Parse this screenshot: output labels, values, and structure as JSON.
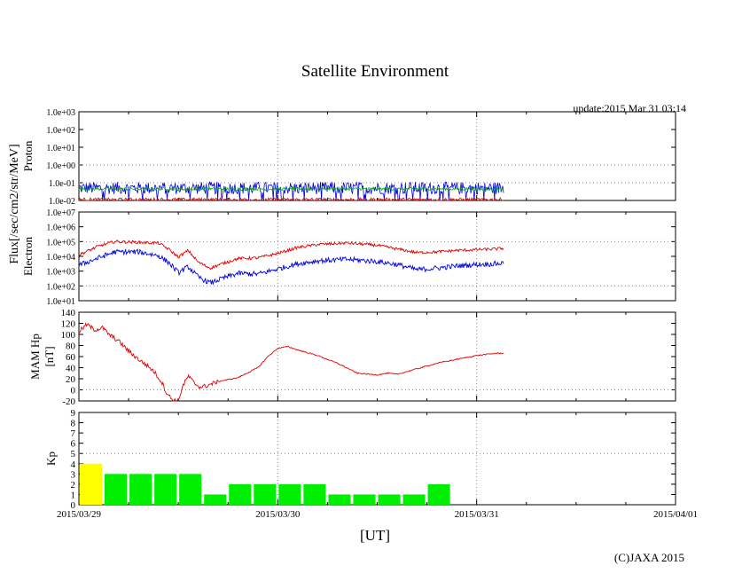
{
  "header": {
    "title": "Satellite Environment",
    "update": "update:2015 Mar 31 03:14"
  },
  "footer": {
    "xlabel": "[UT]",
    "credit": "(C)JAXA 2015"
  },
  "colors": {
    "red": "#e00000",
    "blue": "#0000e0",
    "green": "#00b000",
    "kp_low": "#00ee00",
    "kp_high": "#ffff00",
    "grid": "#888888"
  },
  "chart_data": [
    {
      "name": "proton",
      "type": "line",
      "scale": "log",
      "ylabel": "Proton",
      "shared_ylabel": "Flux[/sec/cm2/str/MeV]",
      "ylim_exp": [
        -2,
        3
      ],
      "ytick_labels": [
        "1.0e-02",
        "1.0e-01",
        "1.0e+00",
        "1.0e+01",
        "1.0e+02",
        "1.0e+03"
      ],
      "xlim_days": [
        0,
        3
      ],
      "data_end_day": 2.135,
      "series": [
        {
          "name": "blue",
          "color_key": "blue",
          "approx_log10_level": -1.3,
          "noise": 0.35
        },
        {
          "name": "green",
          "color_key": "green",
          "approx_log10_level": -1.35,
          "noise": 0.08
        },
        {
          "name": "red",
          "color_key": "red",
          "approx_log10_level": -1.95,
          "noise": 0.1
        }
      ]
    },
    {
      "name": "electron",
      "type": "line",
      "scale": "log",
      "ylabel": "Electron",
      "ylim_exp": [
        1,
        7
      ],
      "ytick_labels": [
        "1.0e+01",
        "1.0e+02",
        "1.0e+03",
        "1.0e+04",
        "1.0e+05",
        "1.0e+06",
        "1.0e+07"
      ],
      "xlim_days": [
        0,
        3
      ],
      "series": [
        {
          "name": "red",
          "color_key": "red",
          "x": [
            0,
            0.1,
            0.18,
            0.3,
            0.4,
            0.45,
            0.5,
            0.55,
            0.6,
            0.66,
            0.72,
            0.8,
            0.9,
            1.0,
            1.1,
            1.2,
            1.35,
            1.5,
            1.6,
            1.7,
            1.8,
            1.9,
            2.0,
            2.1,
            2.135
          ],
          "y_log10": [
            4.1,
            4.7,
            5.0,
            4.95,
            4.9,
            4.5,
            3.95,
            4.4,
            3.6,
            3.2,
            3.5,
            3.85,
            3.9,
            4.2,
            4.6,
            4.8,
            4.9,
            4.75,
            4.5,
            4.25,
            4.3,
            4.4,
            4.45,
            4.5,
            4.55
          ]
        },
        {
          "name": "blue",
          "color_key": "blue",
          "x": [
            0,
            0.1,
            0.18,
            0.3,
            0.4,
            0.45,
            0.5,
            0.55,
            0.6,
            0.66,
            0.72,
            0.8,
            0.9,
            1.0,
            1.1,
            1.2,
            1.35,
            1.5,
            1.6,
            1.7,
            1.8,
            1.9,
            2.0,
            2.1,
            2.135
          ],
          "y_log10": [
            3.4,
            3.9,
            4.3,
            4.3,
            4.05,
            3.6,
            2.9,
            3.3,
            2.6,
            2.2,
            2.5,
            2.85,
            2.8,
            3.15,
            3.5,
            3.7,
            3.8,
            3.65,
            3.45,
            3.1,
            3.2,
            3.35,
            3.45,
            3.5,
            3.55
          ]
        }
      ]
    },
    {
      "name": "mam_hp",
      "type": "line",
      "ylabel": "MAM Hp",
      "ylabel2": "[nT]",
      "ylim": [
        -20,
        140
      ],
      "ytick_labels": [
        "-20",
        "0",
        "20",
        "40",
        "60",
        "80",
        "100",
        "120",
        "140"
      ],
      "xlim_days": [
        0,
        3
      ],
      "series": [
        {
          "name": "hp",
          "color_key": "red",
          "x": [
            0,
            0.04,
            0.08,
            0.12,
            0.15,
            0.2,
            0.25,
            0.3,
            0.35,
            0.38,
            0.42,
            0.44,
            0.47,
            0.5,
            0.52,
            0.55,
            0.58,
            0.61,
            0.64,
            0.7,
            0.8,
            0.9,
            0.95,
            1.0,
            1.05,
            1.1,
            1.2,
            1.3,
            1.4,
            1.5,
            1.55,
            1.6,
            1.65,
            1.7,
            1.8,
            1.9,
            2.0,
            2.1,
            2.135
          ],
          "y": [
            105,
            118,
            108,
            112,
            100,
            88,
            70,
            55,
            42,
            32,
            12,
            -5,
            -18,
            -20,
            5,
            25,
            12,
            5,
            7,
            15,
            22,
            40,
            60,
            75,
            78,
            72,
            62,
            48,
            30,
            27,
            30,
            28,
            33,
            38,
            48,
            55,
            62,
            66,
            66
          ]
        }
      ]
    },
    {
      "name": "kp",
      "type": "bar",
      "ylabel": "Kp",
      "ylim": [
        0,
        9
      ],
      "ytick_labels": [
        "0",
        "1",
        "2",
        "3",
        "4",
        "5",
        "6",
        "7",
        "8",
        "9"
      ],
      "xlim_days": [
        0,
        3
      ],
      "bar_width_days": 0.125,
      "values": [
        4,
        3,
        3,
        3,
        3,
        1,
        2,
        2,
        2,
        2,
        1,
        1,
        1,
        1,
        2
      ],
      "high_threshold": 4
    }
  ],
  "xaxis": {
    "tick_labels": [
      "2015/03/29",
      "2015/03/30",
      "2015/03/31",
      "2015/04/01"
    ]
  }
}
